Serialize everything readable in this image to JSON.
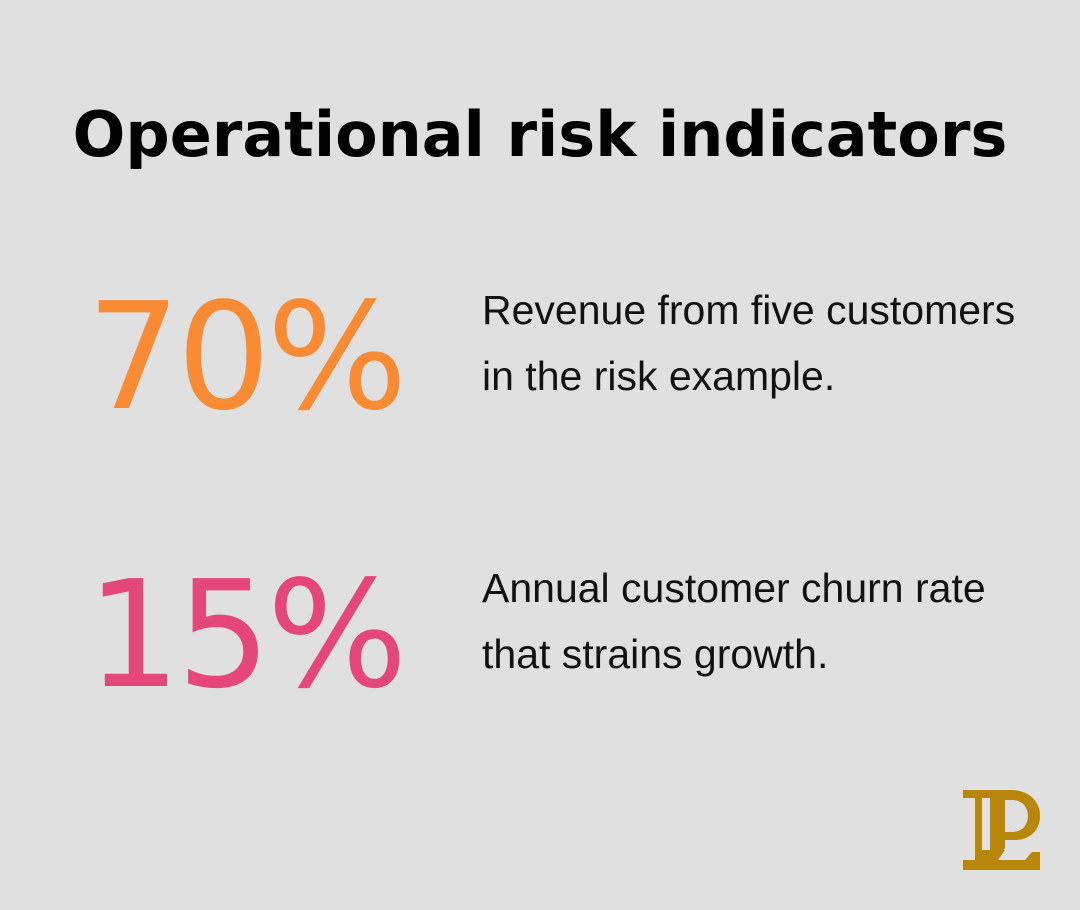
{
  "title": "Operational risk indicators",
  "colors": {
    "background": "#dfe0df",
    "stat1": "#f98b35",
    "stat2": "#e5477a",
    "logo": "#b8860b"
  },
  "stats": [
    {
      "value": "70%",
      "description": "Revenue from five customers in the risk example."
    },
    {
      "value": "15%",
      "description": "Annual customer churn rate that strains growth."
    }
  ],
  "logo": {
    "icon": "pl-monogram-logo"
  }
}
